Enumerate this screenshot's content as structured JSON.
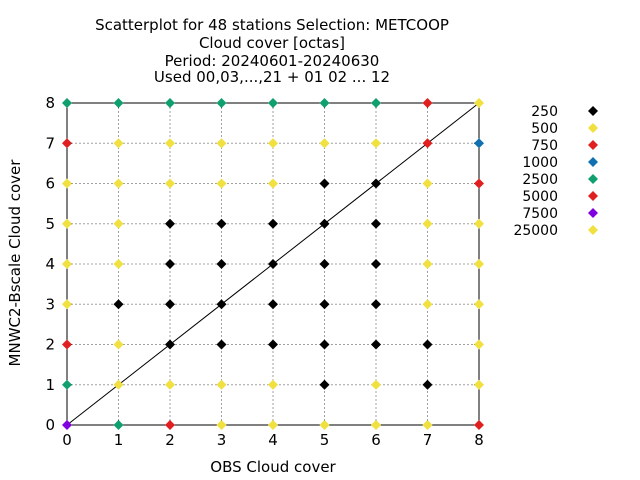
{
  "chart_data": {
    "type": "scatter",
    "title": [
      "Scatterplot for   48 stations Selection: METCOOP",
      "Cloud cover [octas]",
      "Period: 20240601-20240630",
      "Used 00,03,...,21 + 01 02 ... 12"
    ],
    "xlabel": "OBS Cloud cover",
    "ylabel": "MNWC2-Bscale Cloud cover",
    "xlim": [
      0,
      8
    ],
    "ylim": [
      0,
      8
    ],
    "xticks": [
      "0",
      "1",
      "2",
      "3",
      "4",
      "5",
      "6",
      "7",
      "8"
    ],
    "yticks": [
      "0",
      "1",
      "2",
      "3",
      "4",
      "5",
      "6",
      "7",
      "8"
    ],
    "grid": true,
    "diagonal": true,
    "legend_position": "right",
    "marker": "diamond",
    "series": [
      {
        "name": "250",
        "color": "#000000",
        "points": [
          [
            1,
            3
          ],
          [
            2,
            2
          ],
          [
            2,
            3
          ],
          [
            2,
            4
          ],
          [
            2,
            5
          ],
          [
            3,
            2
          ],
          [
            3,
            3
          ],
          [
            3,
            4
          ],
          [
            3,
            5
          ],
          [
            4,
            2
          ],
          [
            4,
            3
          ],
          [
            4,
            4
          ],
          [
            4,
            5
          ],
          [
            5,
            1
          ],
          [
            5,
            2
          ],
          [
            5,
            3
          ],
          [
            5,
            4
          ],
          [
            5,
            5
          ],
          [
            5,
            6
          ],
          [
            6,
            2
          ],
          [
            6,
            3
          ],
          [
            6,
            4
          ],
          [
            6,
            5
          ],
          [
            6,
            6
          ],
          [
            7,
            1
          ],
          [
            7,
            2
          ]
        ]
      },
      {
        "name": "500",
        "color": "#f0e040",
        "points": [
          [
            0,
            3
          ],
          [
            0,
            4
          ],
          [
            0,
            5
          ],
          [
            0,
            6
          ],
          [
            1,
            1
          ],
          [
            1,
            2
          ],
          [
            1,
            4
          ],
          [
            1,
            5
          ],
          [
            1,
            6
          ],
          [
            1,
            7
          ],
          [
            2,
            1
          ],
          [
            2,
            6
          ],
          [
            2,
            7
          ],
          [
            3,
            1
          ],
          [
            3,
            6
          ],
          [
            3,
            7
          ],
          [
            4,
            1
          ],
          [
            4,
            6
          ],
          [
            4,
            7
          ],
          [
            5,
            7
          ],
          [
            6,
            1
          ],
          [
            6,
            7
          ],
          [
            7,
            3
          ],
          [
            7,
            4
          ],
          [
            7,
            5
          ],
          [
            7,
            6
          ],
          [
            8,
            1
          ],
          [
            8,
            2
          ],
          [
            8,
            3
          ],
          [
            8,
            4
          ],
          [
            8,
            5
          ],
          [
            8,
            8
          ]
        ]
      },
      {
        "name": "750",
        "color": "#e02020",
        "points": [
          [
            0,
            2
          ],
          [
            0,
            7
          ],
          [
            7,
            7
          ]
        ]
      },
      {
        "name": "1000",
        "color": "#1070b0",
        "points": [
          [
            8,
            7
          ]
        ]
      },
      {
        "name": "2500",
        "color": "#10a070",
        "points": [
          [
            0,
            1
          ],
          [
            0,
            8
          ],
          [
            1,
            0
          ],
          [
            1,
            8
          ],
          [
            2,
            8
          ],
          [
            3,
            8
          ],
          [
            4,
            8
          ],
          [
            5,
            8
          ],
          [
            6,
            8
          ]
        ]
      },
      {
        "name": "5000",
        "color": "#e02020",
        "points": [
          [
            2,
            0
          ],
          [
            7,
            8
          ],
          [
            8,
            0
          ],
          [
            8,
            6
          ]
        ]
      },
      {
        "name": "7500",
        "color": "#8000e0",
        "points": [
          [
            0,
            0
          ]
        ]
      },
      {
        "name": "25000",
        "color": "#f0e040",
        "points": [
          [
            3,
            0
          ],
          [
            4,
            0
          ],
          [
            5,
            0
          ],
          [
            6,
            0
          ],
          [
            7,
            0
          ]
        ]
      }
    ]
  }
}
